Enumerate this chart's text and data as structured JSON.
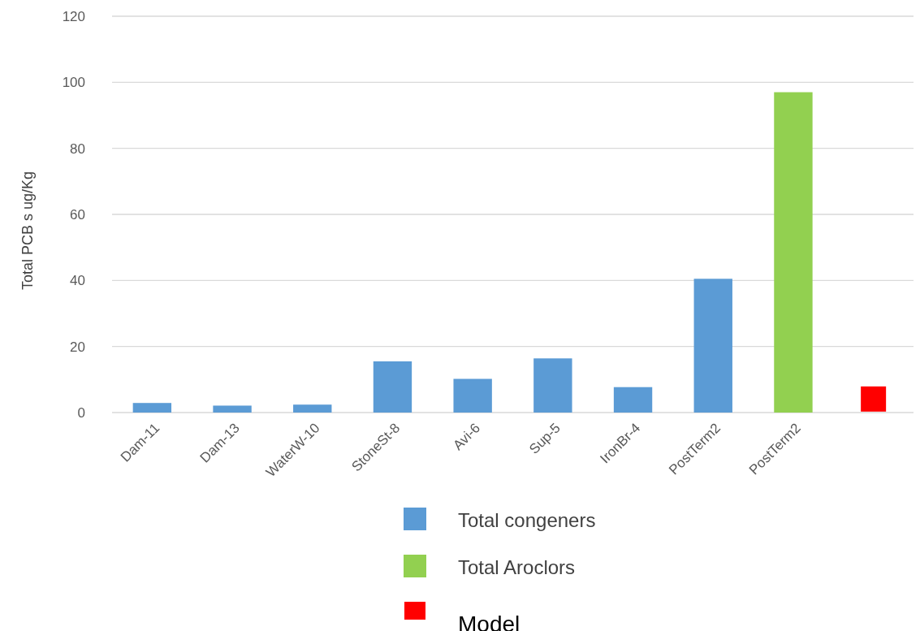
{
  "chart_data": {
    "type": "bar",
    "ylabel": "Total PCB s ug/Kg",
    "categories": [
      "Dam-11",
      "Dam-13",
      "WaterW-10",
      "StoneSt-8",
      "Avi-6",
      "Sup-5",
      "IronBr-4",
      "PostTerm2",
      "PostTerm2",
      null
    ],
    "series": [
      {
        "name": "Total congeners",
        "color": "#5b9bd5",
        "values": [
          2.9,
          2.1,
          2.4,
          15.5,
          10.2,
          16.4,
          7.7,
          40.5,
          null,
          null
        ]
      },
      {
        "name": "Total Aroclors",
        "color": "#92d050",
        "values": [
          null,
          null,
          null,
          null,
          null,
          null,
          null,
          null,
          97,
          null
        ]
      },
      {
        "name": "Model",
        "type": "scatter",
        "color": "#ff0000",
        "marker": "square",
        "values": [
          null,
          null,
          null,
          null,
          null,
          null,
          null,
          null,
          null,
          4.1
        ]
      }
    ],
    "ylim": [
      0,
      120
    ],
    "yticks": [
      0,
      20,
      40,
      60,
      80,
      100,
      120
    ],
    "grid": "y",
    "legend": "bottom"
  }
}
